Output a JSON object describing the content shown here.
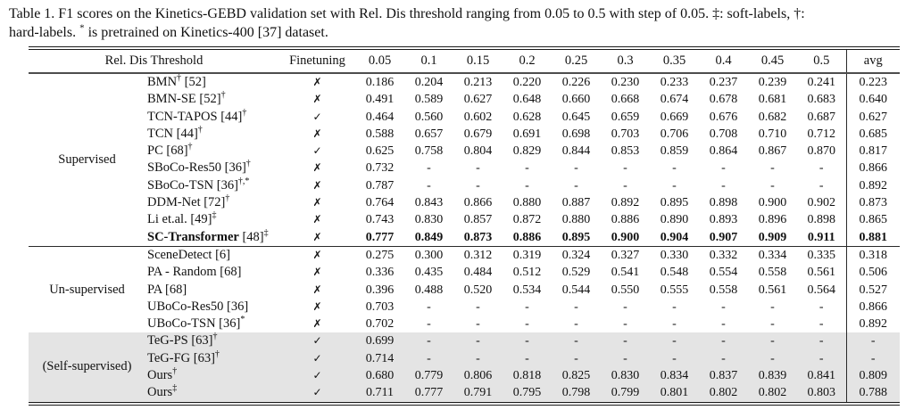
{
  "caption": {
    "line1": "Table 1. F1 scores on the Kinetics-GEBD validation set with Rel. Dis threshold ranging from 0.05 to 0.5 with step of 0.05. ‡: soft-labels, †:",
    "line2_pre": "hard-labels. ",
    "line2_sup": "*",
    "line2_post": " is pretrained on Kinetics-400 [37] dataset."
  },
  "icons": {
    "check": "✓",
    "cross": "✗"
  },
  "colors": {
    "shaded_row_background": "#e4e4e4",
    "text": "#111111",
    "rules": "#1b1b1b"
  },
  "table": {
    "header": [
      "Rel. Dis Threshold",
      "Finetuning",
      "0.05",
      "0.1",
      "0.15",
      "0.2",
      "0.25",
      "0.3",
      "0.35",
      "0.4",
      "0.45",
      "0.5",
      "avg"
    ],
    "groups": [
      {
        "label": "Supervised",
        "shaded": false,
        "rule_above": false,
        "rows": [
          {
            "method": [
              {
                "t": "BMN"
              },
              {
                "s": "†"
              },
              {
                "t": " [52]"
              }
            ],
            "finetuning": "✗",
            "values": [
              "0.186",
              "0.204",
              "0.213",
              "0.220",
              "0.226",
              "0.230",
              "0.233",
              "0.237",
              "0.239",
              "0.241"
            ],
            "avg": "0.223",
            "bold": false
          },
          {
            "method": [
              {
                "t": "BMN-SE [52]"
              },
              {
                "s": "†"
              }
            ],
            "finetuning": "✗",
            "values": [
              "0.491",
              "0.589",
              "0.627",
              "0.648",
              "0.660",
              "0.668",
              "0.674",
              "0.678",
              "0.681",
              "0.683"
            ],
            "avg": "0.640",
            "bold": false
          },
          {
            "method": [
              {
                "t": "TCN-TAPOS [44]"
              },
              {
                "s": "†"
              }
            ],
            "finetuning": "✓",
            "values": [
              "0.464",
              "0.560",
              "0.602",
              "0.628",
              "0.645",
              "0.659",
              "0.669",
              "0.676",
              "0.682",
              "0.687"
            ],
            "avg": "0.627",
            "bold": false
          },
          {
            "method": [
              {
                "t": "TCN [44]"
              },
              {
                "s": "†"
              }
            ],
            "finetuning": "✗",
            "values": [
              "0.588",
              "0.657",
              "0.679",
              "0.691",
              "0.698",
              "0.703",
              "0.706",
              "0.708",
              "0.710",
              "0.712"
            ],
            "avg": "0.685",
            "bold": false
          },
          {
            "method": [
              {
                "t": "PC [68]"
              },
              {
                "s": "†"
              }
            ],
            "finetuning": "✓",
            "values": [
              "0.625",
              "0.758",
              "0.804",
              "0.829",
              "0.844",
              "0.853",
              "0.859",
              "0.864",
              "0.867",
              "0.870"
            ],
            "avg": "0.817",
            "bold": false
          },
          {
            "method": [
              {
                "t": "SBoCo-Res50 [36]"
              },
              {
                "s": "†"
              }
            ],
            "finetuning": "✗",
            "values": [
              "0.732",
              "-",
              "-",
              "-",
              "-",
              "-",
              "-",
              "-",
              "-",
              "-"
            ],
            "avg": "0.866",
            "bold": false
          },
          {
            "method": [
              {
                "t": "SBoCo-TSN [36]"
              },
              {
                "s": "†,*"
              }
            ],
            "finetuning": "✗",
            "values": [
              "0.787",
              "-",
              "-",
              "-",
              "-",
              "-",
              "-",
              "-",
              "-",
              "-"
            ],
            "avg": "0.892",
            "bold": false
          },
          {
            "method": [
              {
                "t": "DDM-Net [72]"
              },
              {
                "s": "†"
              }
            ],
            "finetuning": "✗",
            "values": [
              "0.764",
              "0.843",
              "0.866",
              "0.880",
              "0.887",
              "0.892",
              "0.895",
              "0.898",
              "0.900",
              "0.902"
            ],
            "avg": "0.873",
            "bold": false
          },
          {
            "method": [
              {
                "t": "Li et.al. [49]"
              },
              {
                "s": "‡"
              }
            ],
            "finetuning": "✗",
            "values": [
              "0.743",
              "0.830",
              "0.857",
              "0.872",
              "0.880",
              "0.886",
              "0.890",
              "0.893",
              "0.896",
              "0.898"
            ],
            "avg": "0.865",
            "bold": false
          },
          {
            "method": [
              {
                "t": "SC-Transformer",
                "b": true
              },
              {
                "t": " [48]"
              },
              {
                "s": "‡"
              }
            ],
            "finetuning": "✗",
            "values": [
              "0.777",
              "0.849",
              "0.873",
              "0.886",
              "0.895",
              "0.900",
              "0.904",
              "0.907",
              "0.909",
              "0.911"
            ],
            "avg": "0.881",
            "bold": true
          }
        ]
      },
      {
        "label": "Un-supervised",
        "shaded": false,
        "rule_above": true,
        "rows": [
          {
            "method": [
              {
                "t": "SceneDetect [6]"
              }
            ],
            "finetuning": "✗",
            "values": [
              "0.275",
              "0.300",
              "0.312",
              "0.319",
              "0.324",
              "0.327",
              "0.330",
              "0.332",
              "0.334",
              "0.335"
            ],
            "avg": "0.318",
            "bold": false
          },
          {
            "method": [
              {
                "t": "PA - Random [68]"
              }
            ],
            "finetuning": "✗",
            "values": [
              "0.336",
              "0.435",
              "0.484",
              "0.512",
              "0.529",
              "0.541",
              "0.548",
              "0.554",
              "0.558",
              "0.561"
            ],
            "avg": "0.506",
            "bold": false
          },
          {
            "method": [
              {
                "t": "PA [68]"
              }
            ],
            "finetuning": "✗",
            "values": [
              "0.396",
              "0.488",
              "0.520",
              "0.534",
              "0.544",
              "0.550",
              "0.555",
              "0.558",
              "0.561",
              "0.564"
            ],
            "avg": "0.527",
            "bold": false
          },
          {
            "method": [
              {
                "t": "UBoCo-Res50 [36]"
              }
            ],
            "finetuning": "✗",
            "values": [
              "0.703",
              "-",
              "-",
              "-",
              "-",
              "-",
              "-",
              "-",
              "-",
              "-"
            ],
            "avg": "0.866",
            "bold": false
          },
          {
            "method": [
              {
                "t": "UBoCo-TSN [36]"
              },
              {
                "s": "*"
              }
            ],
            "finetuning": "✗",
            "values": [
              "0.702",
              "-",
              "-",
              "-",
              "-",
              "-",
              "-",
              "-",
              "-",
              "-"
            ],
            "avg": "0.892",
            "bold": false
          }
        ]
      },
      {
        "label": "(Self-supervised)",
        "shaded": true,
        "rule_above": false,
        "rows": [
          {
            "method": [
              {
                "t": "TeG-PS [63]"
              },
              {
                "s": "†"
              }
            ],
            "finetuning": "✓",
            "values": [
              "0.699",
              "-",
              "-",
              "-",
              "-",
              "-",
              "-",
              "-",
              "-",
              "-"
            ],
            "avg": "-",
            "bold": false
          },
          {
            "method": [
              {
                "t": "TeG-FG [63]"
              },
              {
                "s": "†"
              }
            ],
            "finetuning": "✓",
            "values": [
              "0.714",
              "-",
              "-",
              "-",
              "-",
              "-",
              "-",
              "-",
              "-",
              "-"
            ],
            "avg": "-",
            "bold": false
          },
          {
            "method": [
              {
                "t": "Ours"
              },
              {
                "s": "†"
              }
            ],
            "finetuning": "✓",
            "values": [
              "0.680",
              "0.779",
              "0.806",
              "0.818",
              "0.825",
              "0.830",
              "0.834",
              "0.837",
              "0.839",
              "0.841"
            ],
            "avg": "0.809",
            "bold": false
          },
          {
            "method": [
              {
                "t": "Ours"
              },
              {
                "s": "‡"
              }
            ],
            "finetuning": "✓",
            "values": [
              "0.711",
              "0.777",
              "0.791",
              "0.795",
              "0.798",
              "0.799",
              "0.801",
              "0.802",
              "0.802",
              "0.803"
            ],
            "avg": "0.788",
            "bold": false
          }
        ]
      }
    ]
  }
}
